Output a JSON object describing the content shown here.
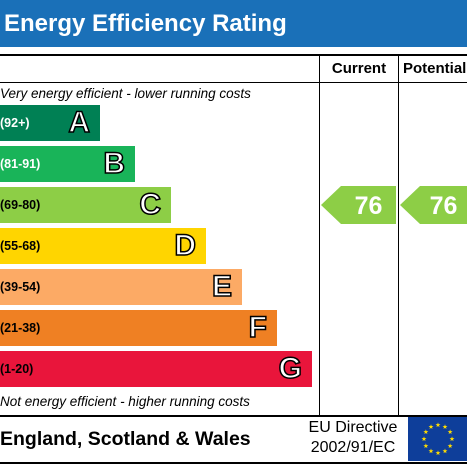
{
  "header": {
    "title": "Energy Efficiency Rating"
  },
  "columns": {
    "current": "Current",
    "potential": "Potential"
  },
  "captions": {
    "top": "Very energy efficient - lower running costs",
    "bottom": "Not energy efficient - higher running costs"
  },
  "footer": {
    "region": "England, Scotland & Wales",
    "directive_line1": "EU Directive",
    "directive_line2": "2002/91/EC",
    "flag_icon": "eu-flag-icon"
  },
  "colors": {
    "title_bar": "#1a70b8",
    "A": "#008054",
    "B": "#19b459",
    "C": "#8dce46",
    "D": "#ffd500",
    "E": "#fcaa65",
    "F": "#ef8023",
    "G": "#e9153b",
    "flag": "#0e3e9a",
    "stars": "#ffdd00"
  },
  "chart_data": {
    "type": "bar",
    "categories": [
      "A",
      "B",
      "C",
      "D",
      "E",
      "F",
      "G"
    ],
    "bands": [
      {
        "letter": "A",
        "range": "(92+)"
      },
      {
        "letter": "B",
        "range": "(81-91)"
      },
      {
        "letter": "C",
        "range": "(69-80)"
      },
      {
        "letter": "D",
        "range": "(55-68)"
      },
      {
        "letter": "E",
        "range": "(39-54)"
      },
      {
        "letter": "F",
        "range": "(21-38)"
      },
      {
        "letter": "G",
        "range": "(1-20)"
      }
    ],
    "current": {
      "value": "76",
      "band": "C"
    },
    "potential": {
      "value": "76",
      "band": "C"
    }
  }
}
